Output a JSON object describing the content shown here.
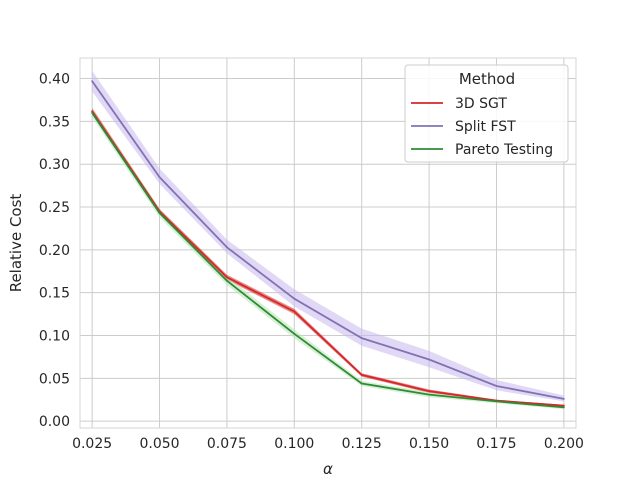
{
  "chart_data": {
    "type": "line",
    "title": "",
    "xlabel": "α",
    "ylabel": "Relative Cost",
    "x": [
      0.025,
      0.05,
      0.075,
      0.1,
      0.125,
      0.15,
      0.175,
      0.2
    ],
    "x_tick_labels": [
      "0.025",
      "0.050",
      "0.075",
      "0.100",
      "0.125",
      "0.150",
      "0.175",
      "0.200"
    ],
    "y_ticks": [
      0.0,
      0.05,
      0.1,
      0.15,
      0.2,
      0.25,
      0.3,
      0.35,
      0.4
    ],
    "y_tick_labels": [
      "0.00",
      "0.05",
      "0.10",
      "0.15",
      "0.20",
      "0.25",
      "0.30",
      "0.35",
      "0.40"
    ],
    "xlim": [
      0.0205,
      0.2045
    ],
    "ylim": [
      -0.008,
      0.424
    ],
    "grid": true,
    "legend": {
      "title": "Method",
      "placement": "top-right"
    },
    "series": [
      {
        "name": "3D SGT",
        "color": "#d62728",
        "values": [
          0.362,
          0.245,
          0.168,
          0.128,
          0.054,
          0.035,
          0.024,
          0.018
        ],
        "band_lower": [
          0.358,
          0.242,
          0.165,
          0.125,
          0.052,
          0.033,
          0.023,
          0.017
        ],
        "band_upper": [
          0.366,
          0.248,
          0.171,
          0.131,
          0.056,
          0.037,
          0.025,
          0.019
        ]
      },
      {
        "name": "Split FST",
        "color": "#8172b3",
        "band_color": "#c9b8ee",
        "values": [
          0.397,
          0.285,
          0.203,
          0.143,
          0.097,
          0.072,
          0.041,
          0.026
        ],
        "band_lower": [
          0.385,
          0.277,
          0.196,
          0.134,
          0.088,
          0.063,
          0.036,
          0.023
        ],
        "band_upper": [
          0.409,
          0.295,
          0.212,
          0.154,
          0.108,
          0.082,
          0.048,
          0.03
        ]
      },
      {
        "name": "Pareto Testing",
        "color": "#2e8b35",
        "band_color": "#b7e3b2",
        "values": [
          0.36,
          0.243,
          0.164,
          0.102,
          0.044,
          0.031,
          0.023,
          0.016
        ],
        "band_lower": [
          0.355,
          0.238,
          0.159,
          0.097,
          0.041,
          0.028,
          0.021,
          0.014
        ],
        "band_upper": [
          0.365,
          0.248,
          0.169,
          0.107,
          0.047,
          0.034,
          0.025,
          0.018
        ]
      }
    ]
  }
}
